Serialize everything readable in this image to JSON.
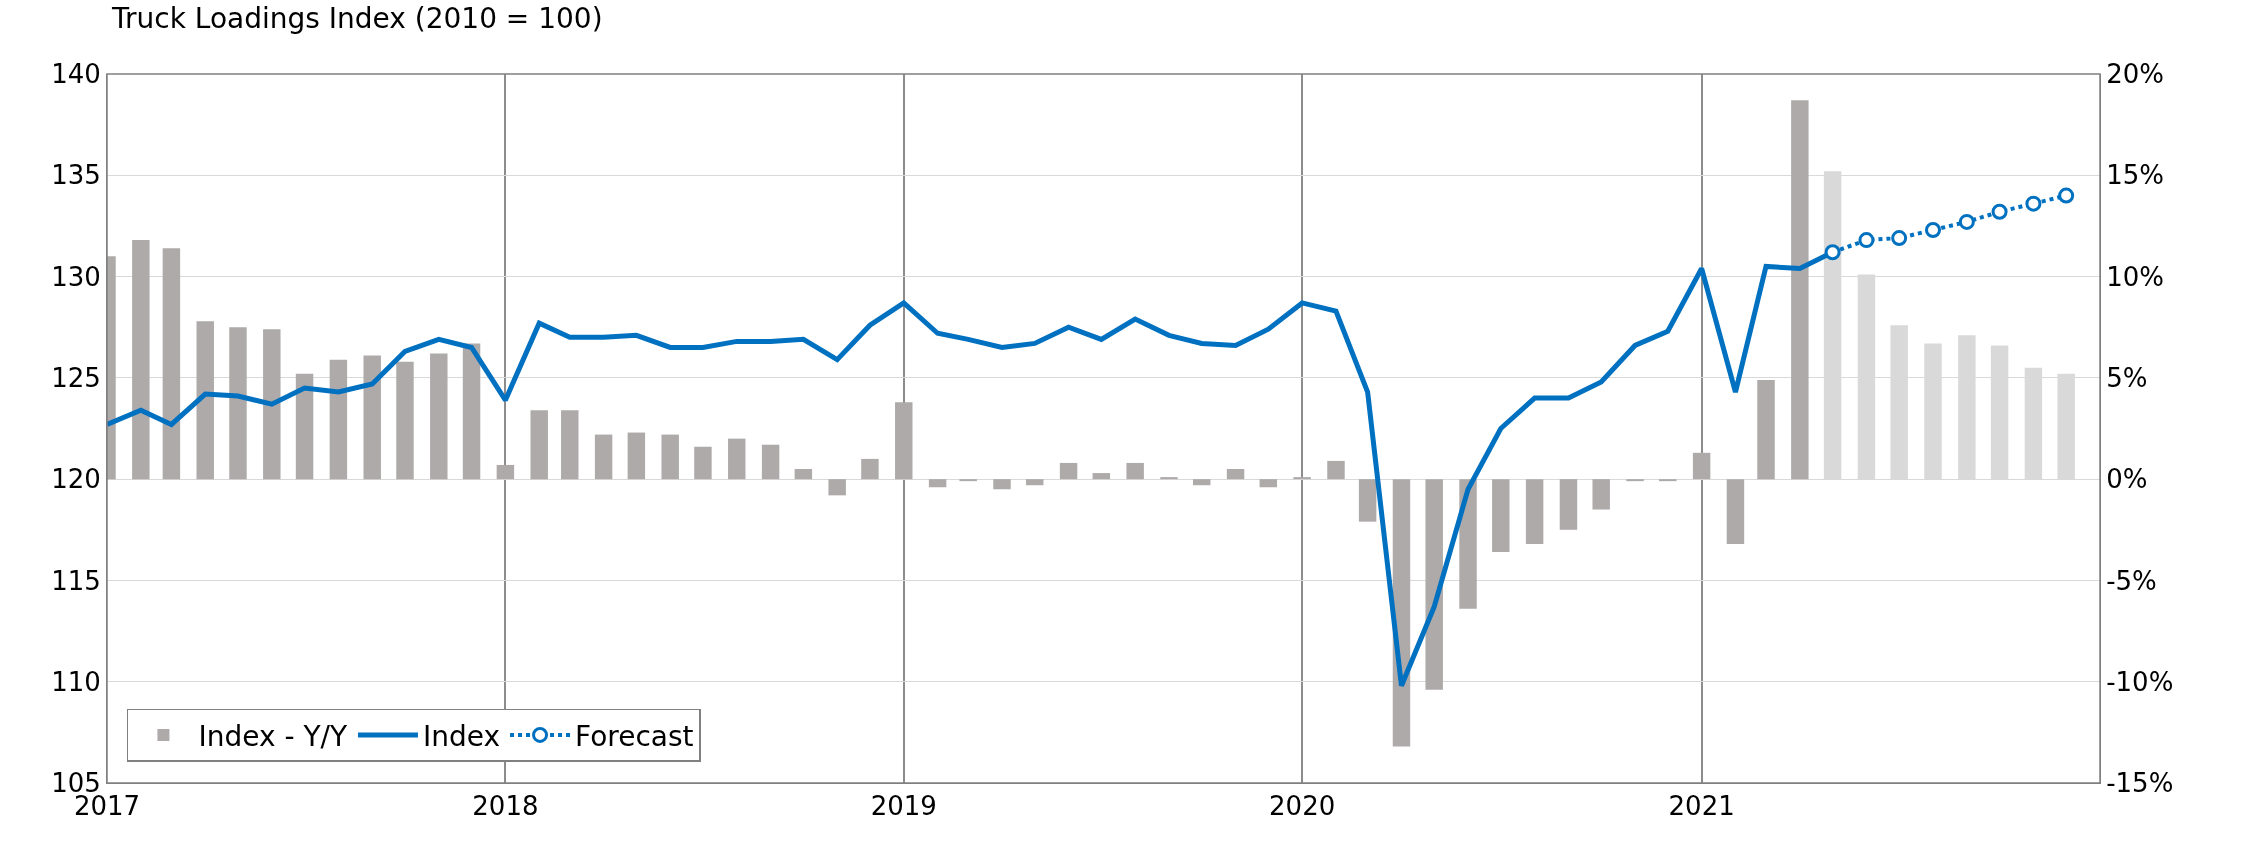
{
  "chart_data": {
    "type": "bar",
    "title": "Truck Loadings Index (2010 = 100)",
    "series": [
      {
        "name": "Index - Y/Y",
        "axis": "y2",
        "color": "#aeaaaa",
        "x": [
          "2017-01",
          "2017-02",
          "2017-03",
          "2017-04",
          "2017-05",
          "2017-06",
          "2017-07",
          "2017-08",
          "2017-09",
          "2017-10",
          "2017-11",
          "2017-12",
          "2018-01",
          "2018-02",
          "2018-03",
          "2018-04",
          "2018-05",
          "2018-06",
          "2018-07",
          "2018-08",
          "2018-09",
          "2018-10",
          "2018-11",
          "2018-12",
          "2019-01",
          "2019-02",
          "2019-03",
          "2019-04",
          "2019-05",
          "2019-06",
          "2019-07",
          "2019-08",
          "2019-09",
          "2019-10",
          "2019-11",
          "2019-12",
          "2020-01",
          "2020-02",
          "2020-03",
          "2020-04",
          "2020-05",
          "2020-06",
          "2020-07",
          "2020-08",
          "2020-09",
          "2020-10",
          "2020-11",
          "2020-12",
          "2021-01",
          "2021-02",
          "2021-03",
          "2021-04"
        ],
        "values": [
          11.0,
          11.8,
          11.4,
          7.8,
          7.5,
          7.4,
          5.2,
          5.9,
          6.1,
          5.8,
          6.2,
          6.7,
          0.7,
          3.4,
          3.4,
          2.2,
          2.3,
          2.2,
          1.6,
          2.0,
          1.7,
          0.5,
          -0.8,
          1.0,
          3.8,
          -0.4,
          -0.1,
          -0.5,
          -0.3,
          0.8,
          0.3,
          0.8,
          0.1,
          -0.3,
          0.5,
          -0.4,
          0.1,
          0.9,
          -2.1,
          -13.2,
          -10.4,
          -6.4,
          -3.6,
          -3.2,
          -2.5,
          -1.5,
          -0.1,
          -0.1,
          1.3,
          -3.2,
          4.9,
          18.7
        ]
      },
      {
        "axis": "y2",
        "color": "#d9d9d9",
        "x": [
          "2021-05",
          "2021-06",
          "2021-07",
          "2021-08",
          "2021-09",
          "2021-10",
          "2021-11",
          "2021-12"
        ],
        "values": [
          15.2,
          10.1,
          7.6,
          6.7,
          7.1,
          6.6,
          5.5,
          5.2
        ]
      },
      {
        "name": "Index",
        "type": "line",
        "color": "#0070c0",
        "marker": "none",
        "line_style": "solid",
        "x": [
          "2017-01",
          "2017-02",
          "2017-03",
          "2017-04",
          "2017-05",
          "2017-06",
          "2017-07",
          "2017-08",
          "2017-09",
          "2017-10",
          "2017-11",
          "2017-12",
          "2018-01",
          "2018-02",
          "2018-03",
          "2018-04",
          "2018-05",
          "2018-06",
          "2018-07",
          "2018-08",
          "2018-09",
          "2018-10",
          "2018-11",
          "2018-12",
          "2019-01",
          "2019-02",
          "2019-03",
          "2019-04",
          "2019-05",
          "2019-06",
          "2019-07",
          "2019-08",
          "2019-09",
          "2019-10",
          "2019-11",
          "2019-12",
          "2020-01",
          "2020-02",
          "2020-03",
          "2020-04",
          "2020-05",
          "2020-06",
          "2020-07",
          "2020-08",
          "2020-09",
          "2020-10",
          "2020-11",
          "2020-12",
          "2021-01",
          "2021-02",
          "2021-03",
          "2021-04",
          "2021-05"
        ],
        "values": [
          122.7,
          123.4,
          122.7,
          124.2,
          124.1,
          123.7,
          124.5,
          124.3,
          124.7,
          126.3,
          126.9,
          126.5,
          123.9,
          127.7,
          127.0,
          127.0,
          127.1,
          126.5,
          126.5,
          126.8,
          126.8,
          126.9,
          125.9,
          127.6,
          128.7,
          127.2,
          126.9,
          126.5,
          126.7,
          127.5,
          126.9,
          127.9,
          127.1,
          126.7,
          126.6,
          127.4,
          128.7,
          128.3,
          124.3,
          109.8,
          113.7,
          119.5,
          122.5,
          124.0,
          124.0,
          124.8,
          126.6,
          127.3,
          130.4,
          124.3,
          130.5,
          130.4,
          131.2
        ]
      },
      {
        "name": "Forecast",
        "type": "line",
        "color": "#0070c0",
        "marker": "circle",
        "line_style": "dotted",
        "x": [
          "2021-05",
          "2021-06",
          "2021-07",
          "2021-08",
          "2021-09",
          "2021-10",
          "2021-11",
          "2021-12"
        ],
        "values": [
          131.2,
          131.8,
          131.9,
          132.3,
          132.7,
          133.2,
          133.6,
          134.0
        ]
      }
    ],
    "xlim": [
      "2017-01",
      "2022-01"
    ],
    "xticks": [
      {
        "value": "2017-01",
        "label": "2017"
      },
      {
        "value": "2018-01",
        "label": "2018"
      },
      {
        "value": "2019-01",
        "label": "2019"
      },
      {
        "value": "2020-01",
        "label": "2020"
      },
      {
        "value": "2021-01",
        "label": "2021"
      }
    ],
    "ylim": [
      105,
      140
    ],
    "yticks": [
      105,
      110,
      115,
      120,
      125,
      130,
      135,
      140
    ],
    "y2lim": [
      -15,
      20
    ],
    "y2ticks": [
      {
        "value": -15,
        "label": "-15%"
      },
      {
        "value": -10,
        "label": "-10%"
      },
      {
        "value": -5,
        "label": "-5%"
      },
      {
        "value": 0,
        "label": "0%"
      },
      {
        "value": 5,
        "label": "5%"
      },
      {
        "value": 10,
        "label": "10%"
      },
      {
        "value": 15,
        "label": "15%"
      },
      {
        "value": 20,
        "label": "20%"
      }
    ],
    "grid": true,
    "legend": "bottom left"
  }
}
